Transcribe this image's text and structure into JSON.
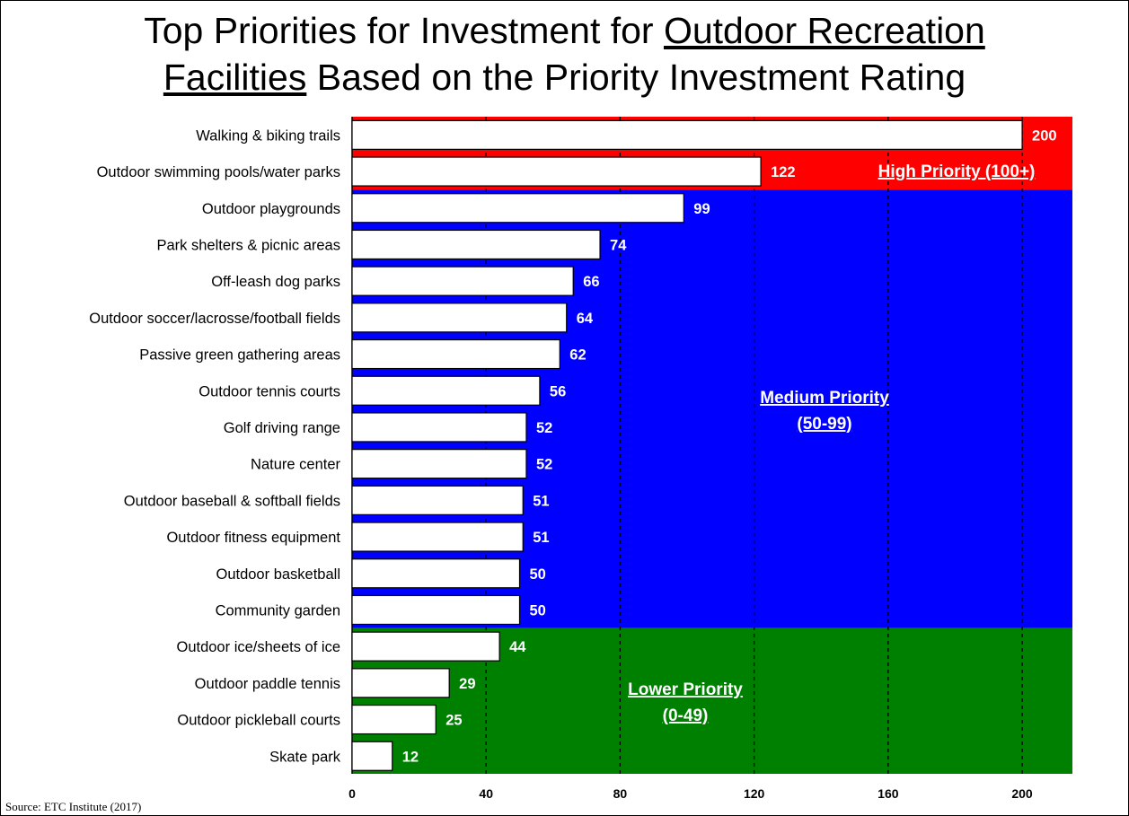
{
  "title": {
    "part1": "Top Priorities for Investment for ",
    "part2": "Outdoor Recreation",
    "part3": "Facilities",
    "part4": " Based on the Priority Investment Rating"
  },
  "source": "Source:  ETC Institute (2017)",
  "chart_data": {
    "type": "bar",
    "orientation": "horizontal",
    "categories": [
      "Walking & biking trails",
      "Outdoor swimming pools/water parks",
      "Outdoor playgrounds",
      "Park shelters & picnic areas",
      "Off-leash dog parks",
      "Outdoor soccer/lacrosse/football fields",
      "Passive green gathering areas",
      "Outdoor tennis courts",
      "Golf driving range",
      "Nature center",
      "Outdoor baseball & softball fields",
      "Outdoor fitness equipment",
      "Outdoor basketball",
      "Community garden",
      "Outdoor ice/sheets of ice",
      "Outdoor paddle tennis",
      "Outdoor pickleball courts",
      "Skate park"
    ],
    "values": [
      200,
      122,
      99,
      74,
      66,
      64,
      62,
      56,
      52,
      52,
      51,
      51,
      50,
      50,
      44,
      29,
      25,
      12
    ],
    "xlim": [
      0,
      215
    ],
    "xticks": [
      0,
      40,
      80,
      120,
      160,
      200
    ],
    "grid": "vertical dashed",
    "zones": [
      {
        "label1": "High Priority (100+)",
        "label2": "",
        "color": "#ff0000",
        "rows": [
          0,
          1
        ]
      },
      {
        "label1": "Medium Priority",
        "label2": "(50-99)",
        "color": "#0000ff",
        "rows": [
          2,
          13
        ]
      },
      {
        "label1": "Lower Priority",
        "label2": "(0-49)",
        "color": "#008000",
        "rows": [
          14,
          17
        ]
      }
    ]
  }
}
